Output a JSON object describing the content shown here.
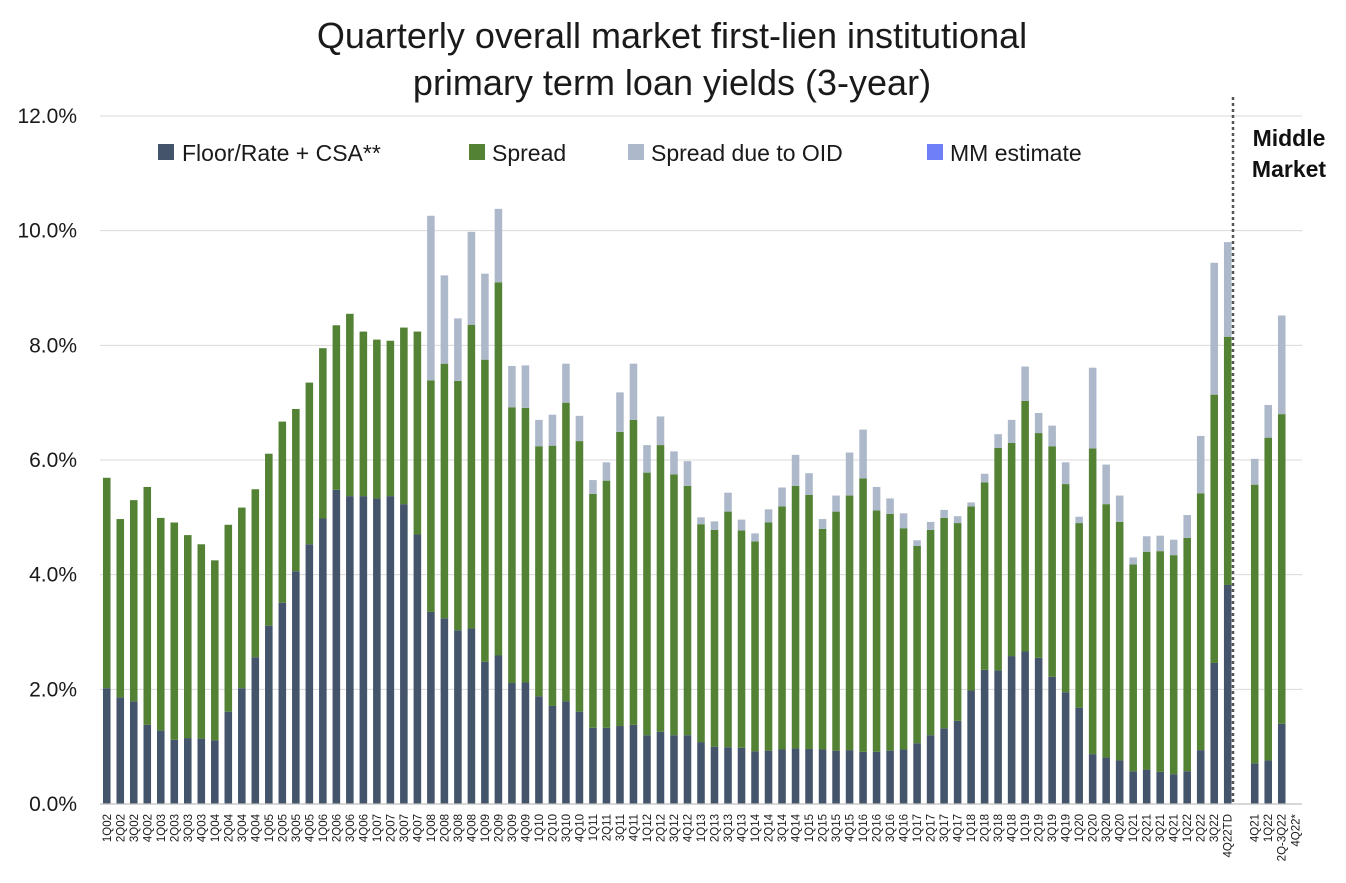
{
  "chart_data": {
    "type": "bar",
    "stacked": true,
    "title_lines": [
      "Quarterly overall market first-lien institutional",
      "primary term loan yields (3-year)"
    ],
    "xlabel": "",
    "ylabel": "",
    "ylim": [
      0,
      12
    ],
    "yticks": [
      "0.0%",
      "2.0%",
      "4.0%",
      "6.0%",
      "8.0%",
      "10.0%",
      "12.0%"
    ],
    "grid": true,
    "legend_position": "top",
    "series": [
      {
        "name": "Floor/Rate + CSA**",
        "color": "#44546a"
      },
      {
        "name": "Spread",
        "color": "#548235"
      },
      {
        "name": "Spread due to OID",
        "color": "#adb9ca"
      },
      {
        "name": "MM estimate",
        "color": "#6f7ff7"
      }
    ],
    "annotation": {
      "lines": [
        "Middle",
        "Market"
      ]
    },
    "categories": [
      "1Q02",
      "2Q02",
      "3Q02",
      "4Q02",
      "1Q03",
      "2Q03",
      "3Q03",
      "4Q03",
      "1Q04",
      "2Q04",
      "3Q04",
      "4Q04",
      "1Q05",
      "2Q05",
      "3Q05",
      "4Q05",
      "1Q06",
      "2Q06",
      "3Q06",
      "4Q06",
      "1Q07",
      "2Q07",
      "3Q07",
      "4Q07",
      "1Q08",
      "2Q08",
      "3Q08",
      "4Q08",
      "1Q09",
      "2Q09",
      "3Q09",
      "4Q09",
      "1Q10",
      "2Q10",
      "3Q10",
      "4Q10",
      "1Q11",
      "2Q11",
      "3Q11",
      "4Q11",
      "1Q12",
      "2Q12",
      "3Q12",
      "4Q12",
      "1Q13",
      "2Q13",
      "3Q13",
      "4Q13",
      "1Q14",
      "2Q14",
      "3Q14",
      "4Q14",
      "1Q15",
      "2Q15",
      "3Q15",
      "4Q15",
      "1Q16",
      "2Q16",
      "3Q16",
      "4Q16",
      "1Q17",
      "2Q17",
      "3Q17",
      "4Q17",
      "1Q18",
      "2Q18",
      "3Q18",
      "4Q18",
      "1Q19",
      "2Q19",
      "3Q19",
      "4Q19",
      "1Q20",
      "2Q20",
      "3Q20",
      "4Q20",
      "1Q21",
      "2Q21",
      "3Q21",
      "4Q21",
      "1Q22",
      "2Q22",
      "3Q22",
      "4Q22TD",
      "",
      "4Q21",
      "1Q22",
      "2Q-3Q22",
      "4Q22*"
    ],
    "floor": [
      2.02,
      1.86,
      1.79,
      1.38,
      1.28,
      1.12,
      1.15,
      1.14,
      1.11,
      1.61,
      2.02,
      2.56,
      3.11,
      3.51,
      4.06,
      4.53,
      4.98,
      5.48,
      5.37,
      5.37,
      5.33,
      5.37,
      5.23,
      4.7,
      3.35,
      3.24,
      3.03,
      3.06,
      2.48,
      2.59,
      2.11,
      2.12,
      1.88,
      1.71,
      1.79,
      1.61,
      1.33,
      1.33,
      1.36,
      1.38,
      1.2,
      1.26,
      1.2,
      1.2,
      1.08,
      1.0,
      0.99,
      0.98,
      0.92,
      0.93,
      0.95,
      0.97,
      0.96,
      0.95,
      0.93,
      0.94,
      0.91,
      0.91,
      0.93,
      0.95,
      1.06,
      1.2,
      1.32,
      1.45,
      1.98,
      2.34,
      2.33,
      2.58,
      2.66,
      2.55,
      2.22,
      1.95,
      1.68,
      0.87,
      0.81,
      0.76,
      0.57,
      0.6,
      0.56,
      0.52,
      0.57,
      0.94,
      2.46,
      3.82,
      0,
      0.71,
      0.76,
      1.4,
      0
    ],
    "spread": [
      3.67,
      3.11,
      3.51,
      4.15,
      3.71,
      3.79,
      3.54,
      3.39,
      3.14,
      3.26,
      3.15,
      2.93,
      3.0,
      3.16,
      2.83,
      2.82,
      2.97,
      2.87,
      3.18,
      2.87,
      2.77,
      2.71,
      3.08,
      3.54,
      4.04,
      4.44,
      4.35,
      5.3,
      5.27,
      6.51,
      4.81,
      4.79,
      4.36,
      4.54,
      5.21,
      4.72,
      4.08,
      4.31,
      5.13,
      5.32,
      4.58,
      5.0,
      4.55,
      4.35,
      3.8,
      3.78,
      4.11,
      3.79,
      3.66,
      3.98,
      4.24,
      4.58,
      4.43,
      3.85,
      4.17,
      4.44,
      4.77,
      4.21,
      4.13,
      3.86,
      3.44,
      3.58,
      3.67,
      3.45,
      3.21,
      3.27,
      3.88,
      3.72,
      4.37,
      3.92,
      4.02,
      3.63,
      3.22,
      5.33,
      4.42,
      4.16,
      3.61,
      3.8,
      3.85,
      3.82,
      4.07,
      4.48,
      4.68,
      4.33,
      0,
      4.86,
      5.63,
      5.4,
      0
    ],
    "oid": [
      0,
      0,
      0,
      0,
      0,
      0,
      0,
      0,
      0,
      0,
      0,
      0,
      0,
      0,
      0,
      0,
      0,
      0,
      0,
      0,
      0,
      0,
      0,
      0,
      2.87,
      1.54,
      1.09,
      1.62,
      1.5,
      1.28,
      0.72,
      0.74,
      0.46,
      0.54,
      0.68,
      0.44,
      0.24,
      0.32,
      0.69,
      0.98,
      0.48,
      0.5,
      0.4,
      0.43,
      0.12,
      0.15,
      0.33,
      0.19,
      0.14,
      0.23,
      0.33,
      0.54,
      0.38,
      0.17,
      0.28,
      0.75,
      0.85,
      0.41,
      0.27,
      0.26,
      0.1,
      0.14,
      0.14,
      0.12,
      0.07,
      0.15,
      0.24,
      0.4,
      0.6,
      0.35,
      0.36,
      0.38,
      0.11,
      1.41,
      0.69,
      0.46,
      0.12,
      0.27,
      0.27,
      0.27,
      0.4,
      1.0,
      2.3,
      1.65,
      0,
      0.45,
      0.57,
      1.72,
      0
    ],
    "mm_estimate": [
      0,
      0,
      0,
      0,
      0,
      0,
      0,
      0,
      0,
      0,
      0,
      0,
      0,
      0,
      0,
      0,
      0,
      0,
      0,
      0,
      0,
      0,
      0,
      0,
      0,
      0,
      0,
      0,
      0,
      0,
      0,
      0,
      0,
      0,
      0,
      0,
      0,
      0,
      0,
      0,
      0,
      0,
      0,
      0,
      0,
      0,
      0,
      0,
      0,
      0,
      0,
      0,
      0,
      0,
      0,
      0,
      0,
      0,
      0,
      0,
      0,
      0,
      0,
      0,
      0,
      0,
      0,
      0,
      0,
      0,
      0,
      0,
      0,
      0,
      0,
      0,
      0,
      0,
      0,
      0,
      0,
      0,
      0,
      0,
      0,
      0,
      0,
      0,
      0
    ]
  }
}
